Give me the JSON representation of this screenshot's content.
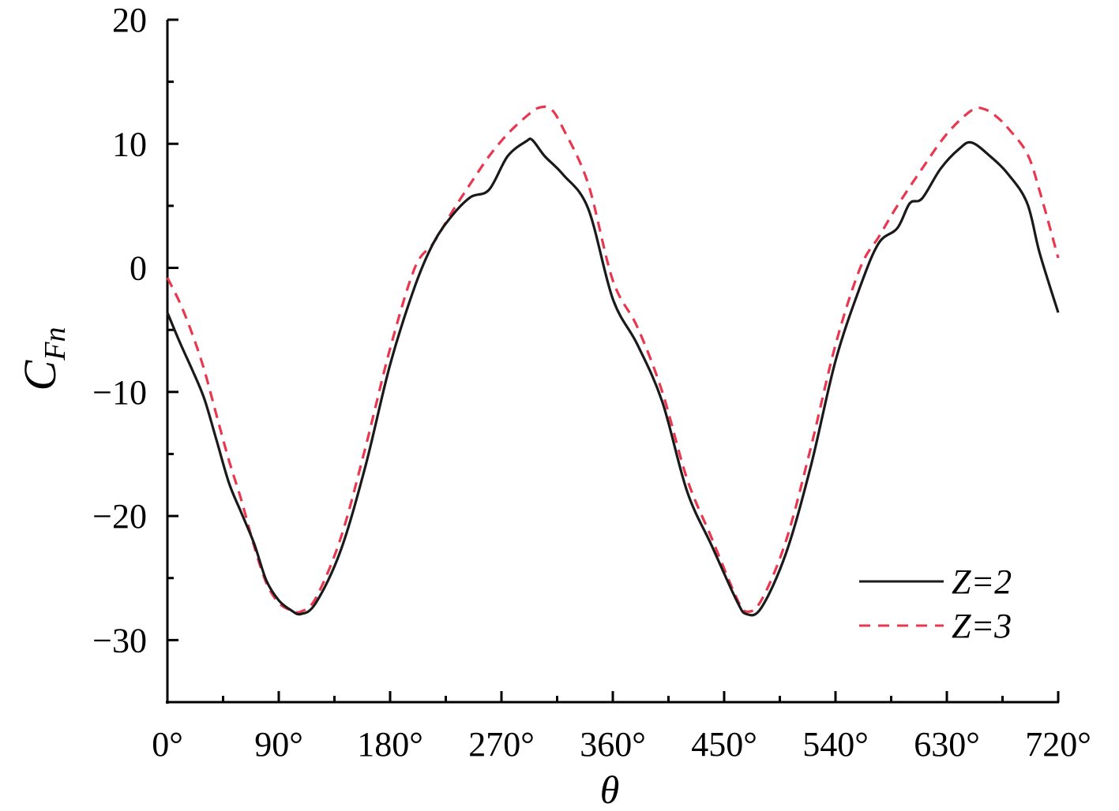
{
  "chart_data": {
    "type": "line",
    "title": "",
    "xlabel": "θ",
    "ylabel": "C",
    "ylabel_subscript": "Fn",
    "xlim": [
      0,
      720
    ],
    "ylim": [
      -35,
      20
    ],
    "xticks": [
      0,
      90,
      180,
      270,
      360,
      450,
      540,
      630,
      720
    ],
    "xtick_labels": [
      "0°",
      "90°",
      "180°",
      "270°",
      "360°",
      "450°",
      "540°",
      "630°",
      "720°"
    ],
    "yticks": [
      20,
      10,
      0,
      -10,
      -20,
      -30
    ],
    "ytick_labels": [
      "20",
      "10",
      "0",
      "−10",
      "−20",
      "−30"
    ],
    "grid": false,
    "legend_position": "bottom-right",
    "series": [
      {
        "name": "Z=2",
        "color": "#1a1a1a",
        "style": "solid",
        "x": [
          0,
          10,
          20,
          30,
          40,
          50,
          60,
          70,
          80,
          90,
          100,
          108,
          120,
          140,
          160,
          180,
          200,
          215,
          230,
          245,
          260,
          275,
          290,
          295,
          305,
          320,
          340,
          360,
          380,
          400,
          420,
          440,
          460,
          468,
          480,
          500,
          520,
          540,
          560,
          575,
          590,
          600,
          610,
          625,
          640,
          650,
          665,
          680,
          695,
          705,
          720
        ],
        "y": [
          -3.6,
          -6.0,
          -8.2,
          -10.6,
          -14.0,
          -17.4,
          -19.8,
          -22.2,
          -25.2,
          -26.8,
          -27.6,
          -27.9,
          -27.0,
          -22.8,
          -16.0,
          -7.8,
          -1.5,
          2.0,
          4.2,
          5.7,
          6.3,
          9.0,
          10.2,
          10.3,
          9.0,
          7.5,
          4.8,
          -2.5,
          -6.2,
          -10.8,
          -18.0,
          -22.4,
          -26.8,
          -27.9,
          -27.4,
          -23.0,
          -16.0,
          -7.5,
          -1.5,
          2.0,
          3.2,
          5.2,
          5.6,
          8.0,
          9.6,
          10.1,
          9.0,
          7.5,
          5.2,
          1.2,
          -3.6
        ]
      },
      {
        "name": "Z=3",
        "color": "#e8384f",
        "style": "dashed",
        "x": [
          0,
          10,
          20,
          30,
          40,
          50,
          60,
          70,
          80,
          90,
          100,
          108,
          120,
          140,
          160,
          180,
          200,
          215,
          230,
          245,
          260,
          275,
          290,
          300,
          310,
          320,
          340,
          360,
          380,
          400,
          420,
          440,
          460,
          468,
          480,
          500,
          520,
          540,
          560,
          575,
          590,
          610,
          630,
          650,
          660,
          670,
          680,
          695,
          705,
          720
        ],
        "y": [
          -0.8,
          -2.8,
          -5.3,
          -8.3,
          -12.0,
          -15.6,
          -18.8,
          -22.4,
          -25.4,
          -27.0,
          -27.6,
          -27.7,
          -26.6,
          -21.8,
          -14.5,
          -6.5,
          0.0,
          2.0,
          4.5,
          6.8,
          9.0,
          10.8,
          12.2,
          12.9,
          12.8,
          11.2,
          6.8,
          -1.0,
          -4.8,
          -10.0,
          -17.0,
          -21.8,
          -26.6,
          -27.7,
          -26.8,
          -22.0,
          -14.5,
          -6.2,
          0.0,
          2.5,
          5.0,
          8.0,
          10.8,
          12.7,
          12.8,
          12.2,
          11.2,
          9.2,
          6.2,
          0.8
        ]
      }
    ]
  }
}
